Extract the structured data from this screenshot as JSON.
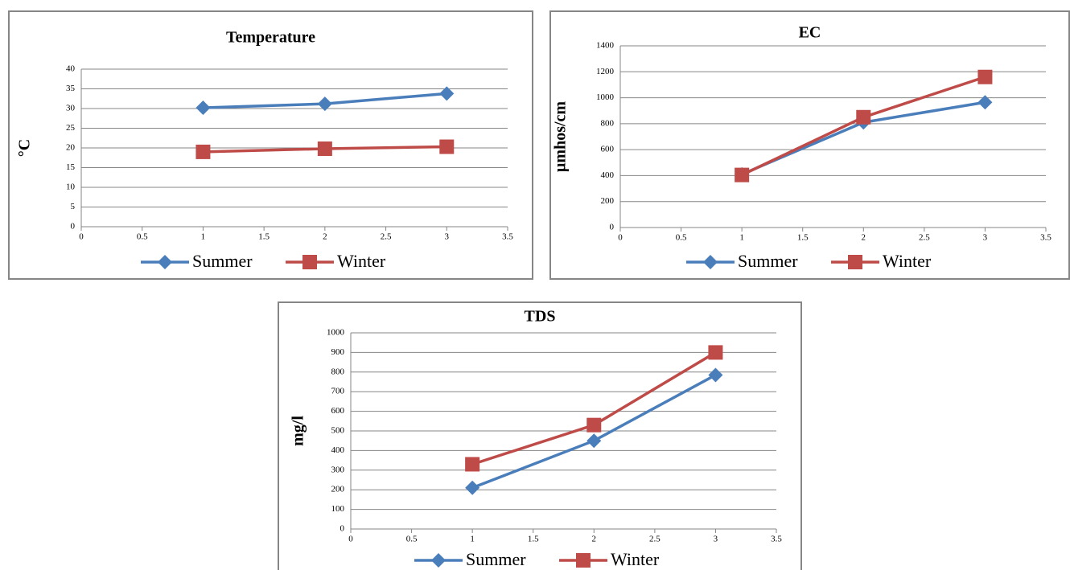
{
  "chart_data": [
    {
      "type": "line",
      "title": "Temperature",
      "y_label": "°C",
      "grid": true,
      "legend": "bottom",
      "x": [
        1,
        2,
        3
      ],
      "xlim": [
        0,
        3.5
      ],
      "xticks": [
        0,
        0.5,
        1,
        1.5,
        2,
        2.5,
        3,
        3.5
      ],
      "ylim": [
        0,
        40
      ],
      "yticks": [
        0,
        5,
        10,
        15,
        20,
        25,
        30,
        35,
        40
      ],
      "series": [
        {
          "name": "Summer",
          "color": "#4a7ebb",
          "marker": "diamond",
          "values": [
            30.2,
            31.2,
            33.8
          ]
        },
        {
          "name": "Winter",
          "color": "#be4b48",
          "marker": "square",
          "values": [
            19.0,
            19.8,
            20.3
          ]
        }
      ]
    },
    {
      "type": "line",
      "title": "EC",
      "y_label": "µmhos/cm",
      "grid": true,
      "legend": "bottom",
      "x": [
        1,
        2,
        3
      ],
      "xlim": [
        0,
        3.5
      ],
      "xticks": [
        0,
        0.5,
        1,
        1.5,
        2,
        2.5,
        3,
        3.5
      ],
      "ylim": [
        0,
        1400
      ],
      "yticks": [
        0,
        200,
        400,
        600,
        800,
        1000,
        1200,
        1400
      ],
      "series": [
        {
          "name": "Summer",
          "color": "#4a7ebb",
          "marker": "diamond",
          "values": [
            410,
            810,
            965
          ]
        },
        {
          "name": "Winter",
          "color": "#be4b48",
          "marker": "square",
          "values": [
            405,
            850,
            1160
          ]
        }
      ]
    },
    {
      "type": "line",
      "title": "TDS",
      "y_label": "mg/l",
      "grid": true,
      "legend": "bottom",
      "x": [
        1,
        2,
        3
      ],
      "xlim": [
        0,
        3.5
      ],
      "xticks": [
        0,
        0.5,
        1,
        1.5,
        2,
        2.5,
        3,
        3.5
      ],
      "ylim": [
        0,
        1000
      ],
      "yticks": [
        0,
        100,
        200,
        300,
        400,
        500,
        600,
        700,
        800,
        900,
        1000
      ],
      "series": [
        {
          "name": "Summer",
          "color": "#4a7ebb",
          "marker": "diamond",
          "values": [
            210,
            450,
            785
          ]
        },
        {
          "name": "Winter",
          "color": "#be4b48",
          "marker": "square",
          "values": [
            330,
            530,
            900
          ]
        }
      ]
    }
  ]
}
